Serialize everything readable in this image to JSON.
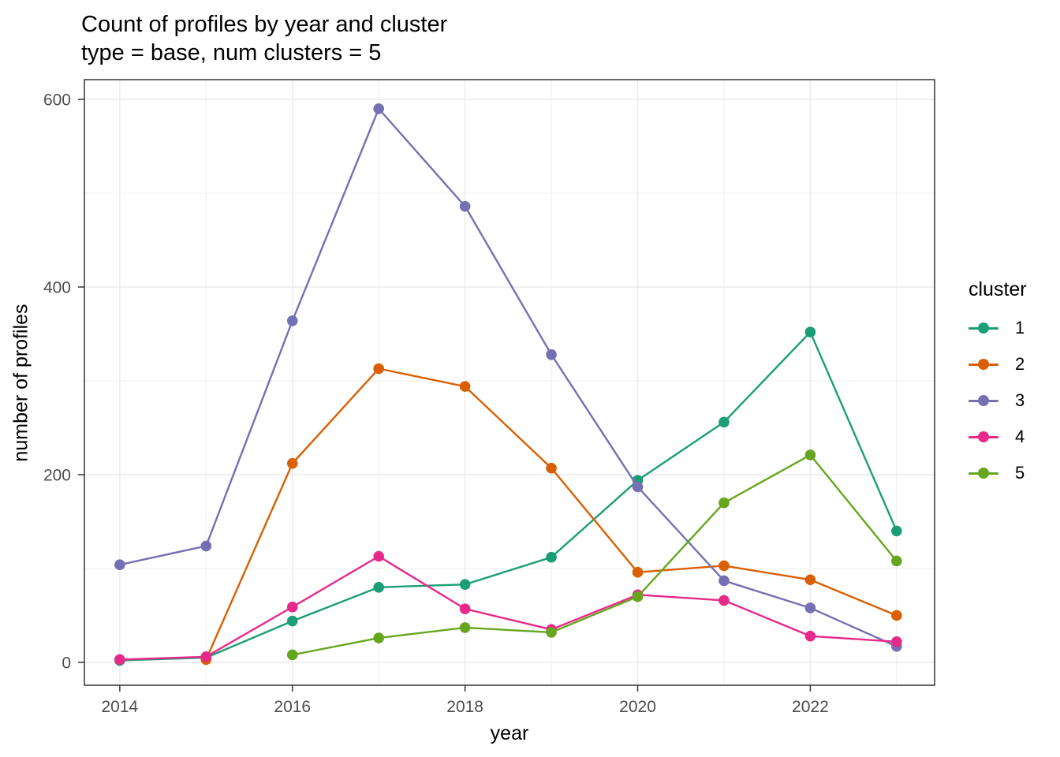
{
  "chart_data": {
    "type": "line",
    "title": "Count of profiles by year and cluster",
    "subtitle": "type = base, num clusters = 5",
    "xlabel": "year",
    "ylabel": "number of profiles",
    "legend_title": "cluster",
    "legend_position": "right",
    "grid": "major+minor",
    "x_ticks": [
      2014,
      2016,
      2018,
      2020,
      2022
    ],
    "x_minor_ticks": [
      2015,
      2017,
      2019,
      2021,
      2023
    ],
    "y_ticks": [
      0,
      200,
      400,
      600
    ],
    "y_minor_ticks": [
      100,
      300,
      500
    ],
    "xlim": [
      2013.59,
      2023.44
    ],
    "ylim": [
      -24.4,
      621
    ],
    "series": [
      {
        "name": "1",
        "color": "#1B9E77",
        "x": [
          2014,
          2015,
          2016,
          2017,
          2018,
          2019,
          2020,
          2021,
          2022,
          2023
        ],
        "y": [
          2,
          5,
          44,
          80,
          83,
          112,
          194,
          256,
          352,
          140
        ]
      },
      {
        "name": "2",
        "color": "#D95F02",
        "x": [
          2015,
          2016,
          2017,
          2018,
          2019,
          2020,
          2021,
          2022,
          2023
        ],
        "y": [
          3,
          212,
          313,
          294,
          207,
          96,
          103,
          88,
          50
        ]
      },
      {
        "name": "3",
        "color": "#7570B3",
        "x": [
          2014,
          2015,
          2016,
          2017,
          2018,
          2019,
          2020,
          2021,
          2022,
          2023
        ],
        "y": [
          104,
          124,
          364,
          590,
          486,
          328,
          187,
          87,
          58,
          17
        ]
      },
      {
        "name": "4",
        "color": "#E7298A",
        "x": [
          2014,
          2015,
          2016,
          2017,
          2018,
          2019,
          2020,
          2021,
          2022,
          2023
        ],
        "y": [
          3,
          6,
          59,
          113,
          57,
          35,
          72,
          66,
          28,
          22
        ]
      },
      {
        "name": "5",
        "color": "#66A61E",
        "x": [
          2016,
          2017,
          2018,
          2019,
          2020,
          2021,
          2022,
          2023
        ],
        "y": [
          8,
          26,
          37,
          32,
          70,
          170,
          221,
          108
        ]
      }
    ]
  }
}
